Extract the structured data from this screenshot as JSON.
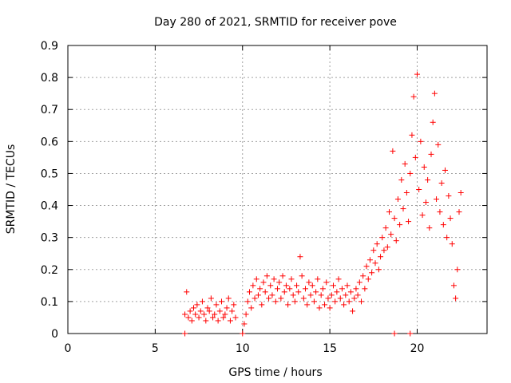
{
  "chart_data": {
    "type": "scatter",
    "title": "Day 280 of 2021, SRMTID for receiver pove",
    "xlabel": "GPS time / hours",
    "ylabel": "SRMTID / TECUs",
    "xlim": [
      0,
      24
    ],
    "ylim": [
      0,
      0.9
    ],
    "xticks": [
      0,
      5,
      10,
      15,
      20
    ],
    "yticks": [
      0,
      0.1,
      0.2,
      0.3,
      0.4,
      0.5,
      0.6,
      0.7,
      0.8,
      0.9
    ],
    "ytick_labels": [
      "0",
      "0.1",
      "0.2",
      "0.3",
      "0.4",
      "0.5",
      "0.6",
      "0.7",
      "0.8",
      "0.9"
    ],
    "grid": true,
    "marker": "plus",
    "series_color": "#ff0000",
    "series": [
      {
        "name": "SRMTID",
        "points": [
          [
            6.7,
            0.06
          ],
          [
            6.8,
            0.13
          ],
          [
            6.9,
            0.05
          ],
          [
            7.0,
            0.07
          ],
          [
            7.1,
            0.04
          ],
          [
            7.2,
            0.08
          ],
          [
            7.3,
            0.06
          ],
          [
            7.4,
            0.09
          ],
          [
            7.5,
            0.05
          ],
          [
            7.6,
            0.07
          ],
          [
            7.7,
            0.1
          ],
          [
            7.8,
            0.06
          ],
          [
            7.9,
            0.04
          ],
          [
            8.0,
            0.08
          ],
          [
            8.1,
            0.07
          ],
          [
            8.2,
            0.11
          ],
          [
            8.3,
            0.05
          ],
          [
            8.4,
            0.06
          ],
          [
            8.5,
            0.09
          ],
          [
            8.6,
            0.04
          ],
          [
            8.7,
            0.07
          ],
          [
            8.8,
            0.1
          ],
          [
            8.9,
            0.05
          ],
          [
            9.0,
            0.06
          ],
          [
            9.1,
            0.08
          ],
          [
            9.2,
            0.11
          ],
          [
            9.3,
            0.04
          ],
          [
            9.4,
            0.07
          ],
          [
            9.5,
            0.09
          ],
          [
            9.6,
            0.05
          ],
          [
            10.1,
            0.03
          ],
          [
            10.2,
            0.06
          ],
          [
            10.3,
            0.1
          ],
          [
            10.4,
            0.13
          ],
          [
            10.5,
            0.08
          ],
          [
            10.6,
            0.15
          ],
          [
            10.7,
            0.11
          ],
          [
            10.8,
            0.17
          ],
          [
            10.9,
            0.12
          ],
          [
            11.0,
            0.14
          ],
          [
            11.1,
            0.09
          ],
          [
            11.2,
            0.16
          ],
          [
            11.3,
            0.13
          ],
          [
            11.4,
            0.18
          ],
          [
            11.5,
            0.11
          ],
          [
            11.6,
            0.15
          ],
          [
            11.7,
            0.12
          ],
          [
            11.8,
            0.17
          ],
          [
            11.9,
            0.1
          ],
          [
            12.0,
            0.14
          ],
          [
            12.1,
            0.16
          ],
          [
            12.2,
            0.11
          ],
          [
            12.3,
            0.18
          ],
          [
            12.4,
            0.13
          ],
          [
            12.5,
            0.15
          ],
          [
            12.6,
            0.09
          ],
          [
            12.7,
            0.14
          ],
          [
            12.8,
            0.17
          ],
          [
            12.9,
            0.12
          ],
          [
            13.0,
            0.1
          ],
          [
            13.1,
            0.15
          ],
          [
            13.2,
            0.13
          ],
          [
            13.3,
            0.24
          ],
          [
            13.4,
            0.18
          ],
          [
            13.5,
            0.11
          ],
          [
            13.6,
            0.14
          ],
          [
            13.7,
            0.09
          ],
          [
            13.8,
            0.16
          ],
          [
            13.9,
            0.12
          ],
          [
            14.0,
            0.15
          ],
          [
            14.1,
            0.1
          ],
          [
            14.2,
            0.13
          ],
          [
            14.3,
            0.17
          ],
          [
            14.4,
            0.08
          ],
          [
            14.5,
            0.12
          ],
          [
            14.6,
            0.14
          ],
          [
            14.7,
            0.09
          ],
          [
            14.8,
            0.16
          ],
          [
            14.9,
            0.11
          ],
          [
            15.0,
            0.08
          ],
          [
            15.1,
            0.12
          ],
          [
            15.2,
            0.15
          ],
          [
            15.3,
            0.1
          ],
          [
            15.4,
            0.13
          ],
          [
            15.5,
            0.17
          ],
          [
            15.6,
            0.11
          ],
          [
            15.7,
            0.14
          ],
          [
            15.8,
            0.09
          ],
          [
            15.9,
            0.12
          ],
          [
            16.0,
            0.15
          ],
          [
            16.1,
            0.1
          ],
          [
            16.2,
            0.13
          ],
          [
            16.3,
            0.07
          ],
          [
            16.4,
            0.11
          ],
          [
            16.5,
            0.14
          ],
          [
            16.6,
            0.12
          ],
          [
            16.7,
            0.16
          ],
          [
            16.8,
            0.1
          ],
          [
            16.9,
            0.18
          ],
          [
            17.0,
            0.14
          ],
          [
            17.1,
            0.21
          ],
          [
            17.2,
            0.17
          ],
          [
            17.3,
            0.23
          ],
          [
            17.4,
            0.19
          ],
          [
            17.5,
            0.26
          ],
          [
            17.6,
            0.22
          ],
          [
            17.7,
            0.28
          ],
          [
            17.8,
            0.2
          ],
          [
            17.9,
            0.24
          ],
          [
            18.0,
            0.3
          ],
          [
            18.1,
            0.26
          ],
          [
            18.2,
            0.33
          ],
          [
            18.3,
            0.27
          ],
          [
            18.4,
            0.38
          ],
          [
            18.5,
            0.31
          ],
          [
            18.6,
            0.57
          ],
          [
            18.7,
            0.36
          ],
          [
            18.8,
            0.29
          ],
          [
            18.9,
            0.42
          ],
          [
            19.0,
            0.34
          ],
          [
            19.1,
            0.48
          ],
          [
            19.2,
            0.39
          ],
          [
            19.3,
            0.53
          ],
          [
            19.4,
            0.44
          ],
          [
            19.5,
            0.35
          ],
          [
            19.6,
            0.5
          ],
          [
            19.7,
            0.62
          ],
          [
            19.8,
            0.74
          ],
          [
            19.9,
            0.55
          ],
          [
            20.0,
            0.81
          ],
          [
            20.1,
            0.45
          ],
          [
            20.2,
            0.6
          ],
          [
            20.3,
            0.37
          ],
          [
            20.4,
            0.52
          ],
          [
            20.5,
            0.41
          ],
          [
            20.6,
            0.48
          ],
          [
            20.7,
            0.33
          ],
          [
            20.8,
            0.56
          ],
          [
            20.9,
            0.66
          ],
          [
            21.0,
            0.75
          ],
          [
            21.1,
            0.42
          ],
          [
            21.2,
            0.59
          ],
          [
            21.3,
            0.38
          ],
          [
            21.4,
            0.47
          ],
          [
            21.5,
            0.34
          ],
          [
            21.6,
            0.51
          ],
          [
            21.7,
            0.3
          ],
          [
            21.8,
            0.43
          ],
          [
            21.9,
            0.36
          ],
          [
            22.0,
            0.28
          ],
          [
            22.1,
            0.15
          ],
          [
            22.2,
            0.11
          ],
          [
            22.3,
            0.2
          ],
          [
            22.4,
            0.38
          ],
          [
            22.5,
            0.44
          ],
          [
            6.7,
            0.0
          ],
          [
            10.0,
            0.0
          ],
          [
            18.7,
            0.0
          ],
          [
            19.6,
            0.0
          ]
        ]
      }
    ]
  }
}
